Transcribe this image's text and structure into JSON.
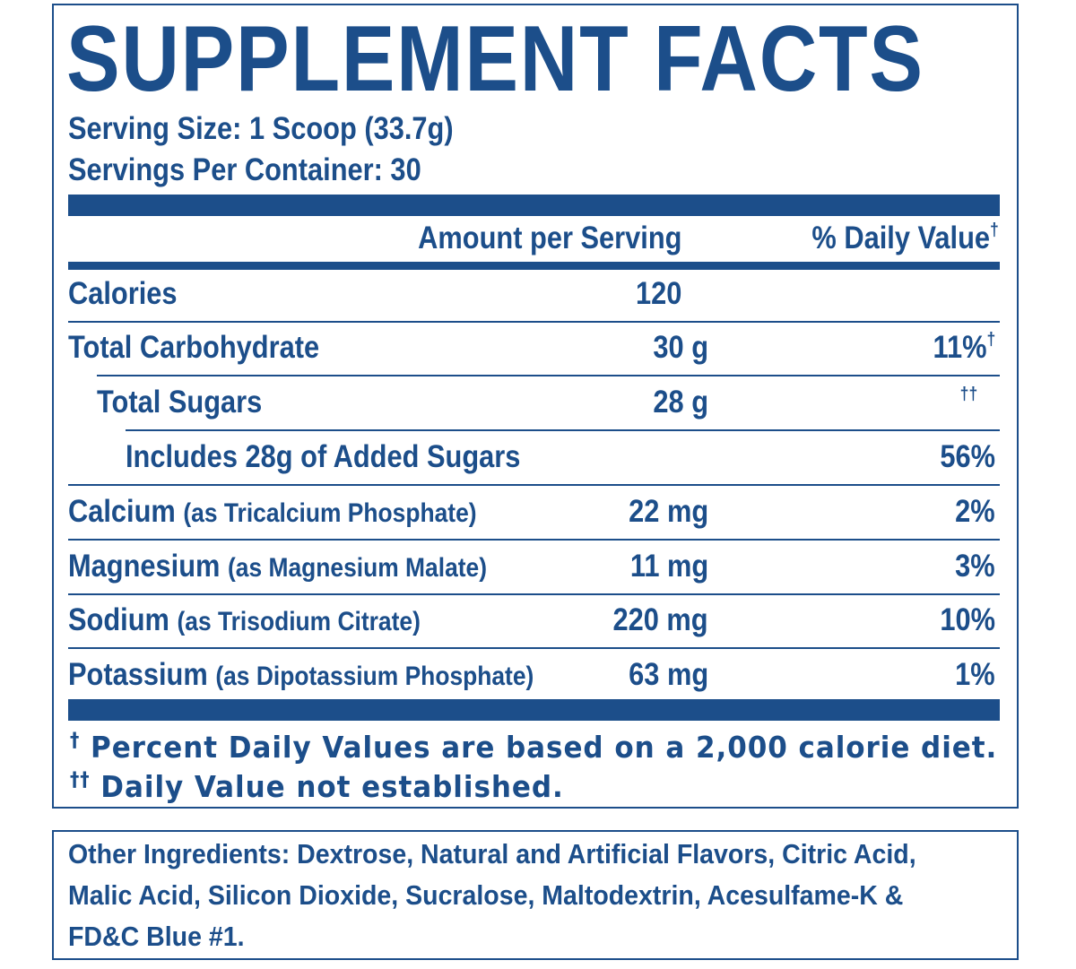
{
  "title": "SUPPLEMENT FACTS",
  "serving_size": "Serving Size: 1 Scoop (33.7g)",
  "servings_per_container": "Servings Per Container: 30",
  "header": {
    "amount": "Amount per Serving",
    "dv": "% Daily Value",
    "dv_mark": "†"
  },
  "rows": [
    {
      "label": "Calories",
      "qualifier": "",
      "amount": "120",
      "dv": "",
      "dv_mark": ""
    },
    {
      "label": "Total Carbohydrate",
      "qualifier": "",
      "amount": "30 g",
      "dv": "11%",
      "dv_mark": "†"
    },
    {
      "label": "Total Sugars",
      "qualifier": "",
      "amount": "28 g",
      "dv": "",
      "dv_mark": "††"
    },
    {
      "label": "Includes 28g of Added Sugars",
      "qualifier": "",
      "amount": "",
      "dv": "56%",
      "dv_mark": ""
    },
    {
      "label": "Calcium",
      "qualifier": "(as Tricalcium Phosphate)",
      "amount": "22 mg",
      "dv": "2%",
      "dv_mark": ""
    },
    {
      "label": "Magnesium",
      "qualifier": "(as Magnesium Malate)",
      "amount": "11 mg",
      "dv": "3%",
      "dv_mark": ""
    },
    {
      "label": "Sodium",
      "qualifier": "(as Trisodium Citrate)",
      "amount": "220 mg",
      "dv": "10%",
      "dv_mark": ""
    },
    {
      "label": "Potassium",
      "qualifier": "(as Dipotassium Phosphate)",
      "amount": "63 mg",
      "dv": "1%",
      "dv_mark": ""
    }
  ],
  "footnotes": [
    {
      "mark": "†",
      "text": "Percent Daily Values are based on a 2,000 calorie diet."
    },
    {
      "mark": "††",
      "text": "Daily Value not established."
    }
  ],
  "other_ingredients": {
    "label": "Other Ingredients:",
    "text": "Dextrose, Natural and Artificial Flavors, Citric Acid, Malic Acid, Silicon Dioxide, Sucralose, Maltodextrin, Acesulfame-K & FD&C Blue #1."
  },
  "colors": {
    "ink": "#1c4e8a",
    "background": "#ffffff"
  }
}
